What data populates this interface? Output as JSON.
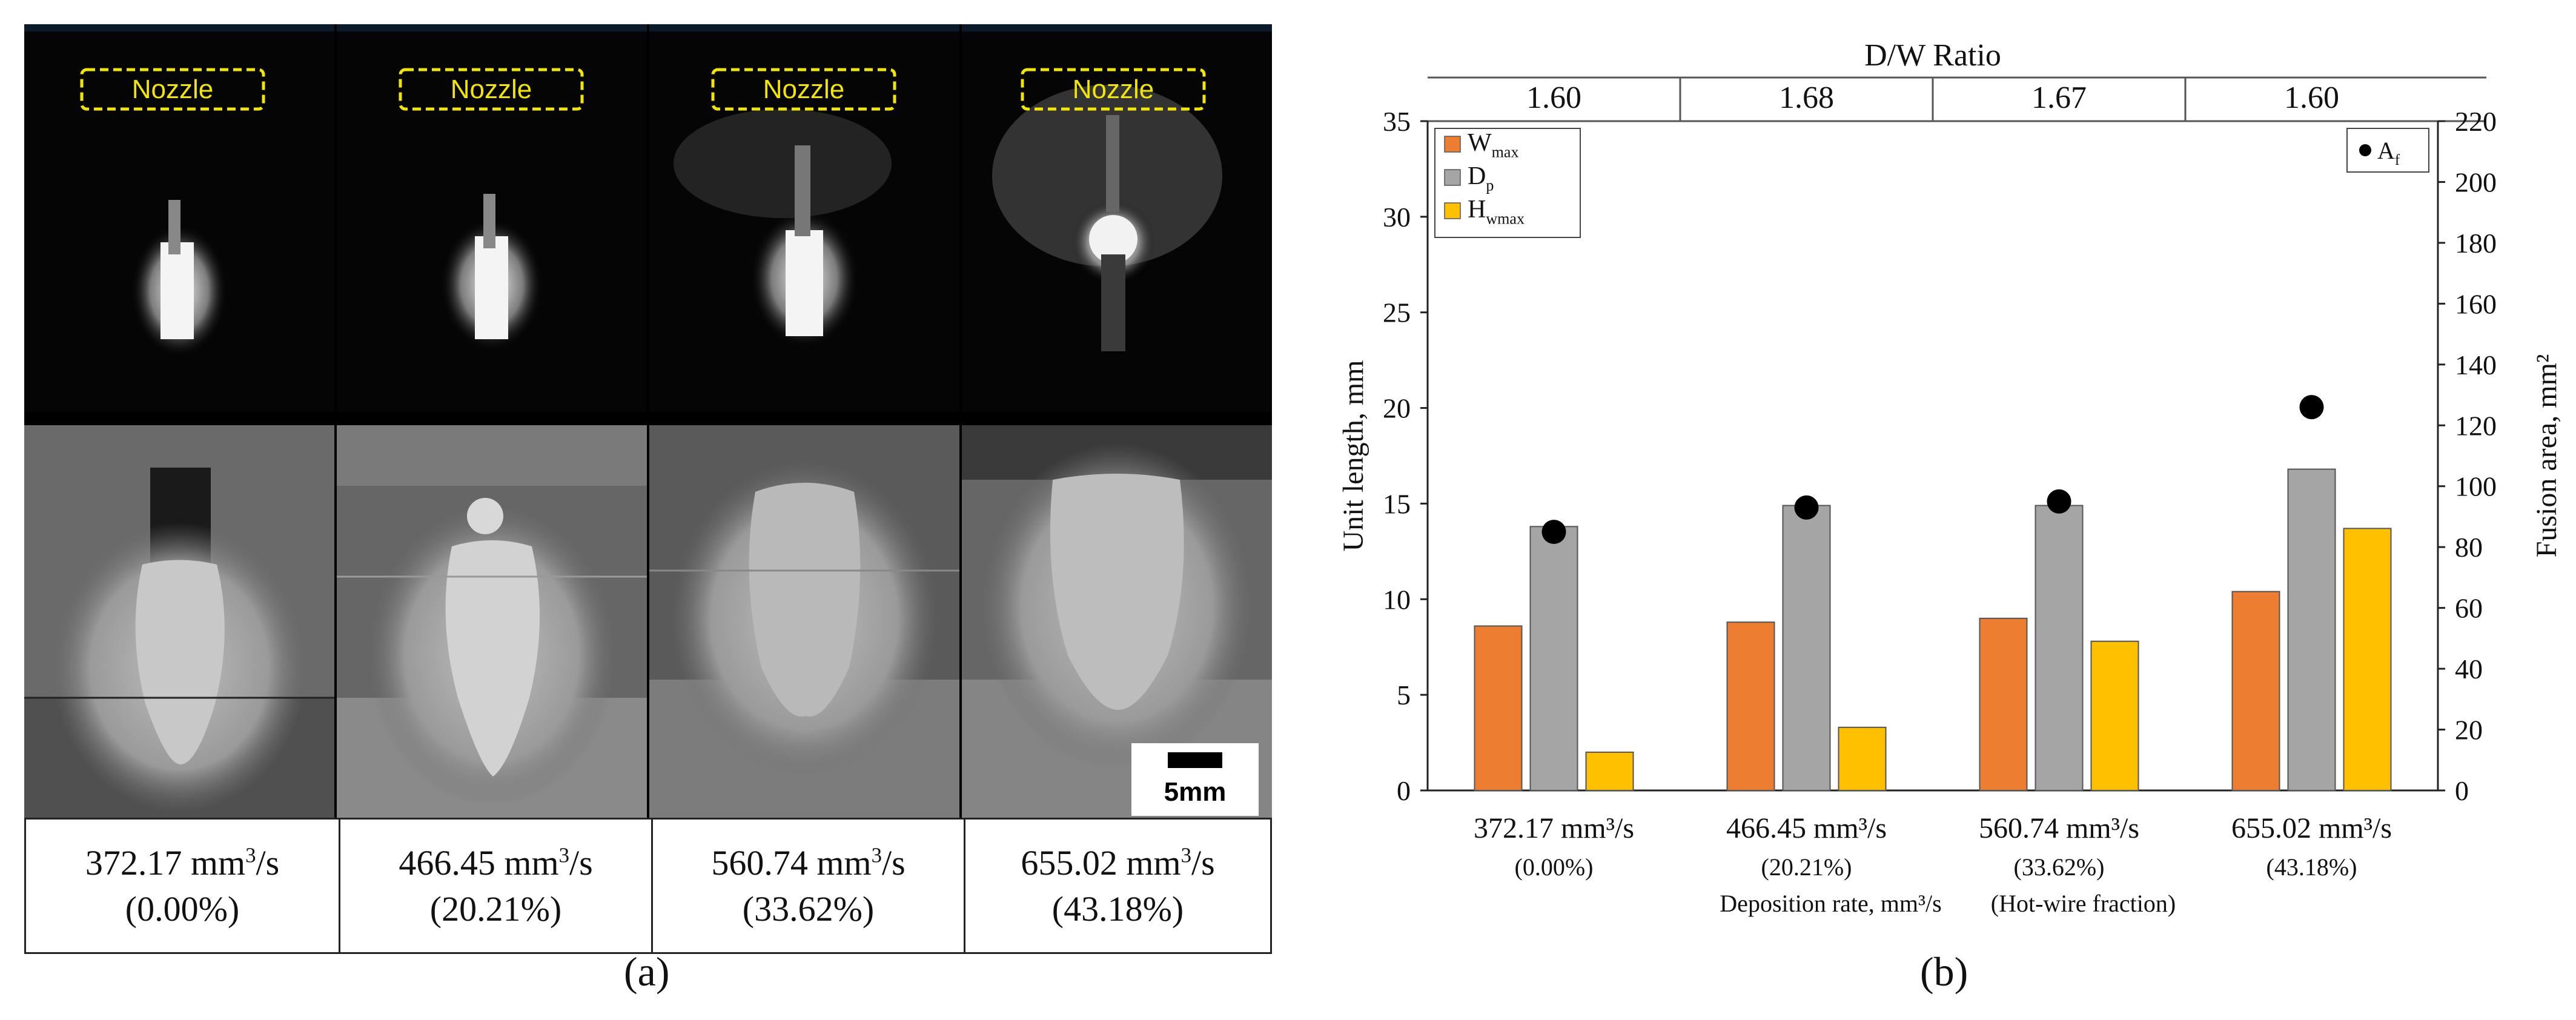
{
  "panel_a": {
    "label": "(a)",
    "nozzle_label": "Nozzle",
    "scale_bar": "5mm",
    "columns": [
      {
        "rate": "372.17 mm",
        "exp": "3",
        "unit": "/s",
        "fraction": "(0.00%)"
      },
      {
        "rate": "466.45 mm",
        "exp": "3",
        "unit": "/s",
        "fraction": "(20.21%)"
      },
      {
        "rate": "560.74 mm",
        "exp": "3",
        "unit": "/s",
        "fraction": "(33.62%)"
      },
      {
        "rate": "655.02 mm",
        "exp": "3",
        "unit": "/s",
        "fraction": "(43.18%)"
      }
    ]
  },
  "panel_b": {
    "label": "(b)"
  },
  "chart_data": {
    "type": "bar",
    "top_header": "D/W Ratio",
    "dw_ratios": [
      "1.60",
      "1.68",
      "1.67",
      "1.60"
    ],
    "categories": [
      {
        "line1": "372.17 mm³/s",
        "line2": "(0.00%)"
      },
      {
        "line1": "466.45 mm³/s",
        "line2": "(20.21%)"
      },
      {
        "line1": "560.74 mm³/s",
        "line2": "(33.62%)"
      },
      {
        "line1": "655.02 mm³/s",
        "line2": "(43.18%)"
      }
    ],
    "xlabel_parts": [
      "Deposition rate, mm³/s",
      "(Hot-wire fraction)"
    ],
    "ylabel": "Unit length, mm",
    "y2label": "Fusion area, mm²",
    "ylim": [
      0,
      35
    ],
    "yticks": [
      0,
      5,
      10,
      15,
      20,
      25,
      30,
      35
    ],
    "y2lim": [
      0,
      220
    ],
    "y2ticks": [
      0,
      20,
      40,
      60,
      80,
      100,
      120,
      140,
      160,
      180,
      200,
      220
    ],
    "series": [
      {
        "name": "W",
        "sub": "max",
        "color": "#ED7D31",
        "values": [
          8.6,
          8.8,
          9.0,
          10.4
        ]
      },
      {
        "name": "D",
        "sub": "p",
        "color": "#A5A5A5",
        "values": [
          13.8,
          14.9,
          14.9,
          16.8
        ]
      },
      {
        "name": "H",
        "sub": "wmax",
        "color": "#FFC000",
        "values": [
          2.0,
          3.3,
          7.8,
          13.7
        ]
      }
    ],
    "scatter": {
      "name": "A",
      "sub": "f",
      "color": "#000000",
      "values": [
        85,
        93,
        95,
        126
      ]
    },
    "grid": false
  }
}
